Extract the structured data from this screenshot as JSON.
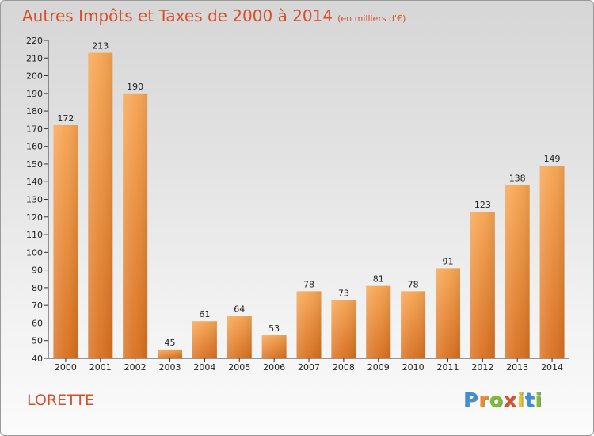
{
  "chart_data": {
    "type": "bar",
    "title": "Autres Impôts et Taxes de 2000 à 2014",
    "subtitle": "(en milliers d'€)",
    "categories": [
      "2000",
      "2001",
      "2002",
      "2003",
      "2004",
      "2005",
      "2006",
      "2007",
      "2008",
      "2009",
      "2010",
      "2011",
      "2012",
      "2013",
      "2014"
    ],
    "values": [
      172,
      213,
      190,
      45,
      61,
      64,
      53,
      78,
      73,
      81,
      78,
      91,
      123,
      138,
      149
    ],
    "xlabel": "",
    "ylabel": "",
    "ylim": [
      40,
      220
    ],
    "yticks": [
      40,
      50,
      60,
      70,
      80,
      90,
      100,
      110,
      120,
      130,
      140,
      150,
      160,
      170,
      180,
      190,
      200,
      210,
      220
    ],
    "grid": false,
    "bar_color_light": "#f7a552",
    "bar_color_dark": "#d9701f"
  },
  "commune": "LORETTE",
  "logo": {
    "letters": [
      "P",
      "r",
      "o",
      "x",
      "i",
      "t",
      "i"
    ],
    "colors": [
      "#3d8fd6",
      "#f08a24",
      "#7bbf2e",
      "#e24b2a",
      "#f2c21b",
      "#3d8fd6",
      "#7bbf2e"
    ]
  },
  "colors": {
    "title": "#d94d2a",
    "axis": "#333333"
  }
}
